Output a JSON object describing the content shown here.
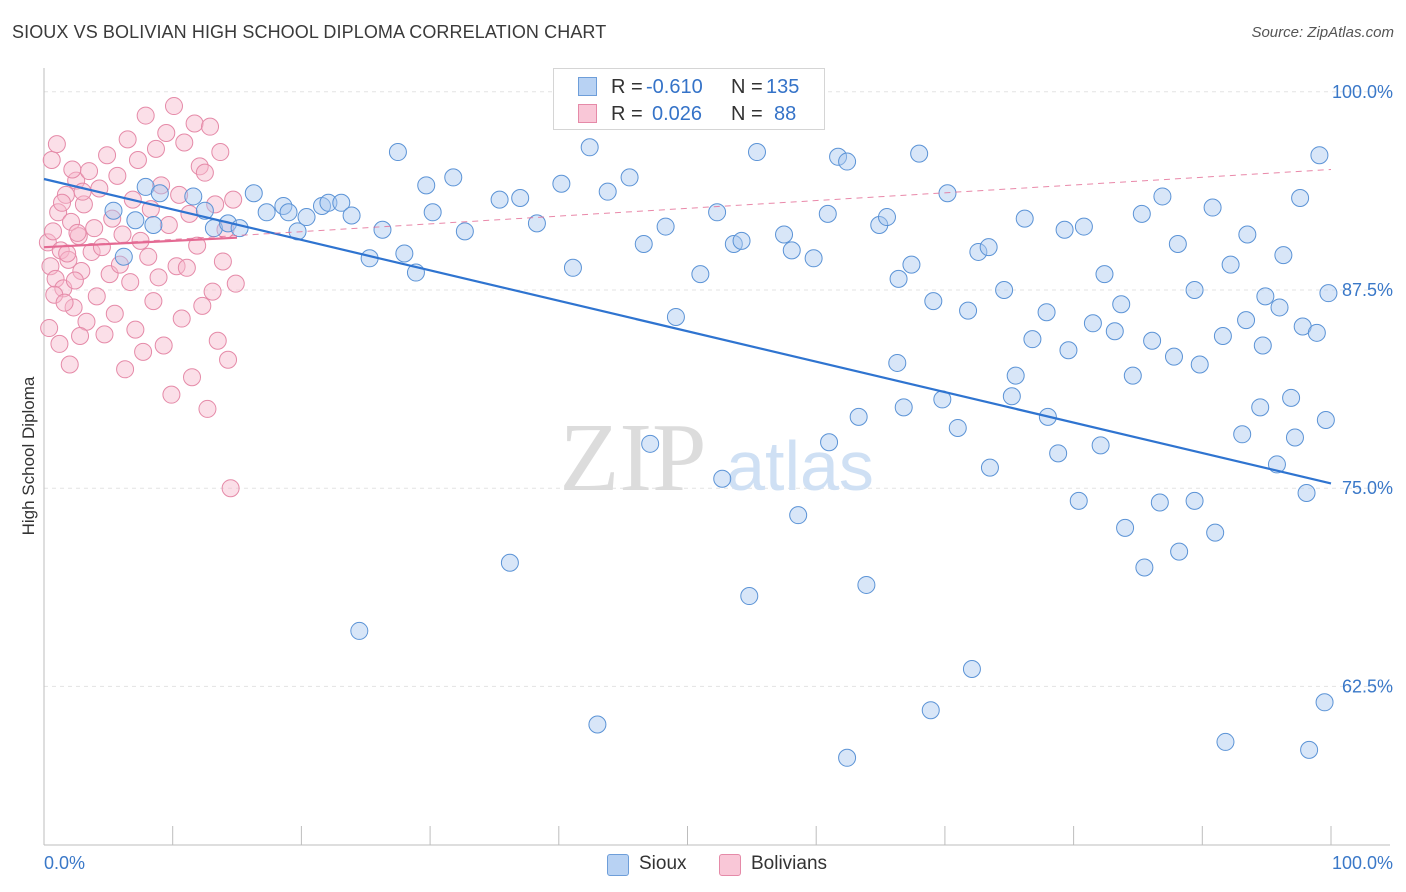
{
  "title": "SIOUX VS BOLIVIAN HIGH SCHOOL DIPLOMA CORRELATION CHART",
  "source": "Source: ZipAtlas.com",
  "watermark": {
    "zip": "ZIP",
    "atlas": "atlas"
  },
  "colors": {
    "sioux_fill": "#a9c8f0",
    "sioux_stroke": "#5b93d6",
    "sioux_line": "#2f74d0",
    "bolivian_fill": "#f6b8cc",
    "bolivian_stroke": "#e58aa8",
    "bolivian_line": "#e46a93",
    "grid": "#e3e3e3",
    "axis_text": "#3a78c8",
    "value_text": "#3573c8"
  },
  "stats": {
    "rows": [
      {
        "series": "Sioux",
        "r_label": "R =",
        "r": "-0.610",
        "n_label": "N =",
        "n": "135"
      },
      {
        "series": "Bolivians",
        "r_label": "R =",
        "r": "0.026",
        "n_label": "N =",
        "n": "88"
      }
    ]
  },
  "legend": {
    "items": [
      "Sioux",
      "Bolivians"
    ]
  },
  "chart_data": {
    "type": "scatter",
    "title": "SIOUX VS BOLIVIAN HIGH SCHOOL DIPLOMA CORRELATION CHART",
    "xlabel": "",
    "ylabel": "High School Diploma",
    "xlim": [
      0,
      100
    ],
    "ylim": [
      52.5,
      101.5
    ],
    "x_tick_labels": [
      "0.0%",
      "100.0%"
    ],
    "y_ticks": [
      62.5,
      75.0,
      87.5,
      100.0
    ],
    "y_tick_labels": [
      "62.5%",
      "75.0%",
      "87.5%",
      "100.0%"
    ],
    "grid": true,
    "series": [
      {
        "name": "Sioux",
        "r": -0.61,
        "n": 135,
        "trend": {
          "x": [
            0,
            100
          ],
          "y": [
            94.5,
            75.3
          ]
        },
        "points": [
          [
            5.4,
            92.5
          ],
          [
            6.2,
            89.6
          ],
          [
            7.1,
            91.9
          ],
          [
            7.9,
            94.0
          ],
          [
            8.5,
            91.6
          ],
          [
            9.0,
            93.6
          ],
          [
            11.6,
            93.4
          ],
          [
            12.5,
            92.5
          ],
          [
            13.2,
            91.4
          ],
          [
            14.3,
            91.7
          ],
          [
            15.2,
            91.4
          ],
          [
            16.3,
            93.6
          ],
          [
            17.3,
            92.4
          ],
          [
            18.6,
            92.8
          ],
          [
            19.0,
            92.4
          ],
          [
            19.7,
            91.2
          ],
          [
            20.4,
            92.1
          ],
          [
            21.6,
            92.8
          ],
          [
            22.1,
            93.0
          ],
          [
            23.1,
            93.0
          ],
          [
            23.9,
            92.2
          ],
          [
            25.3,
            89.5
          ],
          [
            26.3,
            91.3
          ],
          [
            27.5,
            96.2
          ],
          [
            28.0,
            89.8
          ],
          [
            28.9,
            88.6
          ],
          [
            29.7,
            94.1
          ],
          [
            30.2,
            92.4
          ],
          [
            31.8,
            94.6
          ],
          [
            32.7,
            91.2
          ],
          [
            35.4,
            93.2
          ],
          [
            37.0,
            93.3
          ],
          [
            38.3,
            91.7
          ],
          [
            40.2,
            94.2
          ],
          [
            41.1,
            88.9
          ],
          [
            42.4,
            96.5
          ],
          [
            43.8,
            93.7
          ],
          [
            45.5,
            94.6
          ],
          [
            46.6,
            90.4
          ],
          [
            48.3,
            91.5
          ],
          [
            49.1,
            85.8
          ],
          [
            51.0,
            88.5
          ],
          [
            52.3,
            92.4
          ],
          [
            53.6,
            90.4
          ],
          [
            54.2,
            90.6
          ],
          [
            55.4,
            96.2
          ],
          [
            57.5,
            91.0
          ],
          [
            58.1,
            90.0
          ],
          [
            59.8,
            89.5
          ],
          [
            60.9,
            92.3
          ],
          [
            61.7,
            95.9
          ],
          [
            62.4,
            95.6
          ],
          [
            64.9,
            91.6
          ],
          [
            65.5,
            92.1
          ],
          [
            66.4,
            88.2
          ],
          [
            67.4,
            89.1
          ],
          [
            68.0,
            96.1
          ],
          [
            69.1,
            86.8
          ],
          [
            70.2,
            93.6
          ],
          [
            71.8,
            86.2
          ],
          [
            72.6,
            89.9
          ],
          [
            73.4,
            90.2
          ],
          [
            74.6,
            87.5
          ],
          [
            76.2,
            92.0
          ],
          [
            77.9,
            86.1
          ],
          [
            79.3,
            91.3
          ],
          [
            80.8,
            91.5
          ],
          [
            82.4,
            88.5
          ],
          [
            83.7,
            86.6
          ],
          [
            85.3,
            92.3
          ],
          [
            86.9,
            93.4
          ],
          [
            88.1,
            90.4
          ],
          [
            89.4,
            87.5
          ],
          [
            90.8,
            92.7
          ],
          [
            92.2,
            89.1
          ],
          [
            93.5,
            91.0
          ],
          [
            94.9,
            87.1
          ],
          [
            96.3,
            89.7
          ],
          [
            97.6,
            93.3
          ],
          [
            99.1,
            96.0
          ],
          [
            99.5,
            61.5
          ],
          [
            98.3,
            58.5
          ],
          [
            91.8,
            59.0
          ],
          [
            62.4,
            58.0
          ],
          [
            68.9,
            61.0
          ],
          [
            72.1,
            63.6
          ],
          [
            24.5,
            66.0
          ],
          [
            43.0,
            60.1
          ],
          [
            47.1,
            77.8
          ],
          [
            36.2,
            70.3
          ],
          [
            54.8,
            68.2
          ],
          [
            58.6,
            73.3
          ],
          [
            63.9,
            68.9
          ],
          [
            66.8,
            80.1
          ],
          [
            73.5,
            76.3
          ],
          [
            75.2,
            80.8
          ],
          [
            78.8,
            77.2
          ],
          [
            80.4,
            74.2
          ],
          [
            82.1,
            77.7
          ],
          [
            84.0,
            72.5
          ],
          [
            85.5,
            70.0
          ],
          [
            86.7,
            74.1
          ],
          [
            88.2,
            71.0
          ],
          [
            89.4,
            74.2
          ],
          [
            91.0,
            72.2
          ],
          [
            93.1,
            78.4
          ],
          [
            94.5,
            80.1
          ],
          [
            95.8,
            76.5
          ],
          [
            96.9,
            80.7
          ],
          [
            97.2,
            78.2
          ],
          [
            98.1,
            74.7
          ],
          [
            99.6,
            79.3
          ],
          [
            52.7,
            75.6
          ],
          [
            61.0,
            77.9
          ],
          [
            63.3,
            79.5
          ],
          [
            66.3,
            82.9
          ],
          [
            69.8,
            80.6
          ],
          [
            71.0,
            78.8
          ],
          [
            75.5,
            82.1
          ],
          [
            76.8,
            84.4
          ],
          [
            78.0,
            79.5
          ],
          [
            79.6,
            83.7
          ],
          [
            81.5,
            85.4
          ],
          [
            83.2,
            84.9
          ],
          [
            84.6,
            82.1
          ],
          [
            86.1,
            84.3
          ],
          [
            87.8,
            83.3
          ],
          [
            89.8,
            82.8
          ],
          [
            91.6,
            84.6
          ],
          [
            93.4,
            85.6
          ],
          [
            94.7,
            84.0
          ],
          [
            96.0,
            86.4
          ],
          [
            97.8,
            85.2
          ],
          [
            98.9,
            84.8
          ],
          [
            99.8,
            87.3
          ]
        ]
      },
      {
        "name": "Bolivians",
        "r": 0.026,
        "n": 88,
        "trend": {
          "x": [
            0,
            15
          ],
          "y": [
            90.2,
            90.8
          ]
        },
        "points": [
          [
            0.3,
            90.5
          ],
          [
            0.5,
            89.0
          ],
          [
            0.7,
            91.2
          ],
          [
            0.9,
            88.2
          ],
          [
            1.1,
            92.4
          ],
          [
            1.3,
            90.0
          ],
          [
            1.5,
            87.6
          ],
          [
            1.7,
            93.5
          ],
          [
            1.9,
            89.4
          ],
          [
            2.1,
            91.8
          ],
          [
            2.3,
            86.4
          ],
          [
            2.5,
            94.4
          ],
          [
            2.7,
            90.9
          ],
          [
            2.9,
            88.7
          ],
          [
            3.1,
            92.9
          ],
          [
            3.3,
            85.5
          ],
          [
            3.5,
            95.0
          ],
          [
            3.7,
            89.9
          ],
          [
            3.9,
            91.4
          ],
          [
            4.1,
            87.1
          ],
          [
            4.3,
            93.9
          ],
          [
            4.5,
            90.2
          ],
          [
            4.7,
            84.7
          ],
          [
            4.9,
            96.0
          ],
          [
            5.1,
            88.5
          ],
          [
            5.3,
            92.0
          ],
          [
            5.5,
            86.0
          ],
          [
            5.7,
            94.7
          ],
          [
            5.9,
            89.1
          ],
          [
            6.1,
            91.0
          ],
          [
            6.3,
            82.5
          ],
          [
            6.5,
            97.0
          ],
          [
            6.7,
            88.0
          ],
          [
            6.9,
            93.2
          ],
          [
            7.1,
            85.0
          ],
          [
            7.3,
            95.7
          ],
          [
            7.5,
            90.6
          ],
          [
            7.7,
            83.6
          ],
          [
            7.9,
            98.5
          ],
          [
            8.1,
            89.6
          ],
          [
            8.3,
            92.6
          ],
          [
            8.5,
            86.8
          ],
          [
            8.7,
            96.4
          ],
          [
            8.9,
            88.3
          ],
          [
            9.1,
            94.1
          ],
          [
            9.3,
            84.0
          ],
          [
            9.5,
            97.4
          ],
          [
            9.7,
            91.6
          ],
          [
            9.9,
            80.9
          ],
          [
            10.1,
            99.1
          ],
          [
            10.3,
            89.0
          ],
          [
            10.5,
            93.5
          ],
          [
            10.7,
            85.7
          ],
          [
            10.9,
            96.8
          ],
          [
            11.1,
            88.9
          ],
          [
            11.3,
            92.3
          ],
          [
            11.5,
            82.0
          ],
          [
            11.7,
            98.0
          ],
          [
            11.9,
            90.3
          ],
          [
            12.1,
            95.3
          ],
          [
            12.3,
            86.5
          ],
          [
            12.5,
            94.9
          ],
          [
            12.7,
            80.0
          ],
          [
            12.9,
            97.8
          ],
          [
            13.1,
            87.4
          ],
          [
            13.3,
            92.9
          ],
          [
            13.5,
            84.3
          ],
          [
            13.7,
            96.2
          ],
          [
            13.9,
            89.3
          ],
          [
            14.1,
            91.3
          ],
          [
            14.3,
            83.1
          ],
          [
            14.5,
            75.0
          ],
          [
            14.7,
            93.2
          ],
          [
            14.9,
            87.9
          ],
          [
            0.4,
            85.1
          ],
          [
            0.6,
            95.7
          ],
          [
            0.8,
            87.2
          ],
          [
            1.0,
            96.7
          ],
          [
            1.2,
            84.1
          ],
          [
            1.4,
            93.0
          ],
          [
            1.6,
            86.7
          ],
          [
            1.8,
            89.8
          ],
          [
            2.0,
            82.8
          ],
          [
            2.2,
            95.1
          ],
          [
            2.4,
            88.1
          ],
          [
            2.6,
            91.1
          ],
          [
            2.8,
            84.6
          ],
          [
            3.0,
            93.7
          ]
        ]
      }
    ]
  }
}
